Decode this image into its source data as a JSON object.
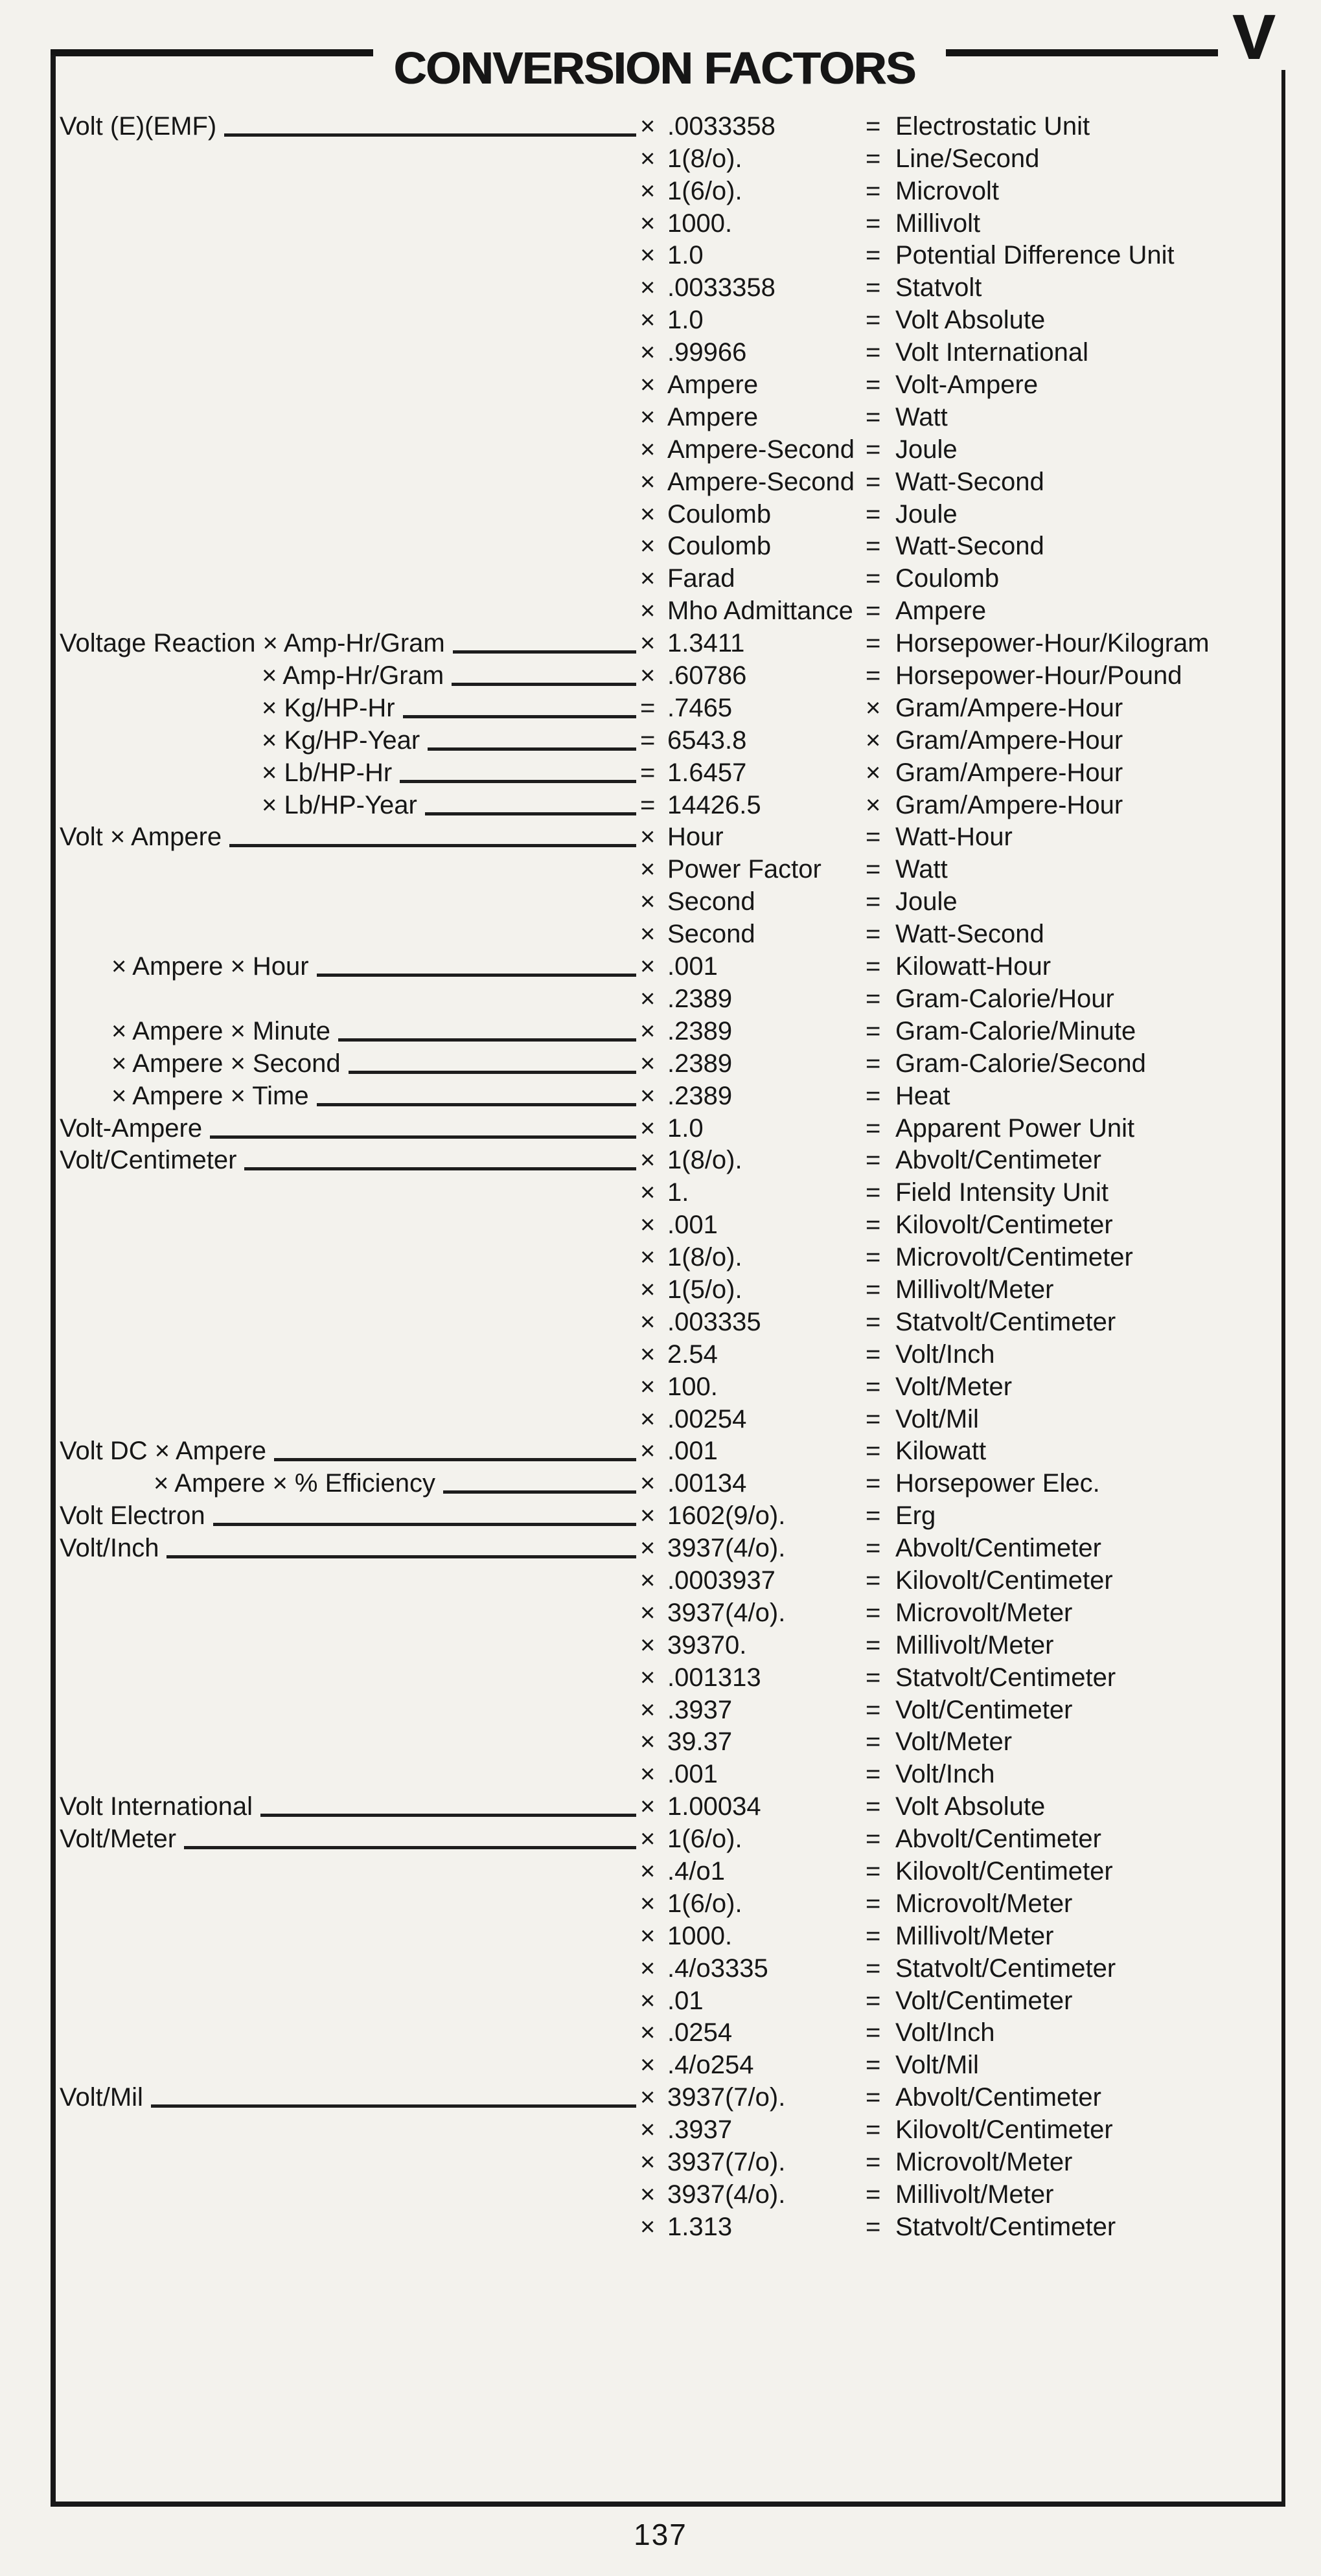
{
  "page": {
    "title": "CONVERSION FACTORS",
    "section_letter": "V",
    "page_number": "137"
  },
  "table": {
    "rows": [
      {
        "label": "Volt (E)(EMF)",
        "indent": 0,
        "leader": true,
        "op": "×",
        "factor": ".0033358",
        "eq": "=",
        "result": "Electrostatic Unit"
      },
      {
        "label": "",
        "indent": 0,
        "leader": false,
        "op": "×",
        "factor": "1(8/o).",
        "eq": "=",
        "result": "Line/Second"
      },
      {
        "label": "",
        "indent": 0,
        "leader": false,
        "op": "×",
        "factor": "1(6/o).",
        "eq": "=",
        "result": "Microvolt"
      },
      {
        "label": "",
        "indent": 0,
        "leader": false,
        "op": "×",
        "factor": "1000.",
        "eq": "=",
        "result": "Millivolt"
      },
      {
        "label": "",
        "indent": 0,
        "leader": false,
        "op": "×",
        "factor": "1.0",
        "eq": "=",
        "result": "Potential Difference Unit"
      },
      {
        "label": "",
        "indent": 0,
        "leader": false,
        "op": "×",
        "factor": ".0033358",
        "eq": "=",
        "result": "Statvolt"
      },
      {
        "label": "",
        "indent": 0,
        "leader": false,
        "op": "×",
        "factor": "1.0",
        "eq": "=",
        "result": "Volt Absolute"
      },
      {
        "label": "",
        "indent": 0,
        "leader": false,
        "op": "×",
        "factor": ".99966",
        "eq": "=",
        "result": "Volt International"
      },
      {
        "label": "",
        "indent": 0,
        "leader": false,
        "op": "×",
        "factor": "Ampere",
        "eq": "=",
        "result": "Volt-Ampere"
      },
      {
        "label": "",
        "indent": 0,
        "leader": false,
        "op": "×",
        "factor": "Ampere",
        "eq": "=",
        "result": "Watt"
      },
      {
        "label": "",
        "indent": 0,
        "leader": false,
        "op": "×",
        "factor": "Ampere-Second",
        "eq": "=",
        "result": "Joule"
      },
      {
        "label": "",
        "indent": 0,
        "leader": false,
        "op": "×",
        "factor": "Ampere-Second",
        "eq": "=",
        "result": "Watt-Second"
      },
      {
        "label": "",
        "indent": 0,
        "leader": false,
        "op": "×",
        "factor": "Coulomb",
        "eq": "=",
        "result": "Joule"
      },
      {
        "label": "",
        "indent": 0,
        "leader": false,
        "op": "×",
        "factor": "Coulomb",
        "eq": "=",
        "result": "Watt-Second"
      },
      {
        "label": "",
        "indent": 0,
        "leader": false,
        "op": "×",
        "factor": "Farad",
        "eq": "=",
        "result": "Coulomb"
      },
      {
        "label": "",
        "indent": 0,
        "leader": false,
        "op": "×",
        "factor": "Mho Admittance",
        "eq": "=",
        "result": "Ampere"
      },
      {
        "label": "Voltage Reaction × Amp-Hr/Gram",
        "indent": 0,
        "leader": true,
        "op": "×",
        "factor": "1.3411",
        "eq": "=",
        "result": "Horsepower-Hour/Kilogram"
      },
      {
        "label": "× Amp-Hr/Gram",
        "indent": 3,
        "leader": true,
        "op": "×",
        "factor": ".60786",
        "eq": "=",
        "result": "Horsepower-Hour/Pound"
      },
      {
        "label": "× Kg/HP-Hr",
        "indent": 3,
        "leader": true,
        "op": "=",
        "factor": ".7465",
        "eq": "×",
        "result": "Gram/Ampere-Hour"
      },
      {
        "label": "× Kg/HP-Year",
        "indent": 3,
        "leader": true,
        "op": "=",
        "factor": "6543.8",
        "eq": "×",
        "result": "Gram/Ampere-Hour"
      },
      {
        "label": "× Lb/HP-Hr",
        "indent": 3,
        "leader": true,
        "op": "=",
        "factor": "1.6457",
        "eq": "×",
        "result": "Gram/Ampere-Hour"
      },
      {
        "label": "× Lb/HP-Year",
        "indent": 3,
        "leader": true,
        "op": "=",
        "factor": "14426.5",
        "eq": "×",
        "result": "Gram/Ampere-Hour"
      },
      {
        "label": "Volt × Ampere",
        "indent": 0,
        "leader": true,
        "op": "×",
        "factor": "Hour",
        "eq": "=",
        "result": "Watt-Hour"
      },
      {
        "label": "",
        "indent": 0,
        "leader": false,
        "op": "×",
        "factor": "Power Factor",
        "eq": "=",
        "result": "Watt"
      },
      {
        "label": "",
        "indent": 0,
        "leader": false,
        "op": "×",
        "factor": "Second",
        "eq": "=",
        "result": "Joule"
      },
      {
        "label": "",
        "indent": 0,
        "leader": false,
        "op": "×",
        "factor": "Second",
        "eq": "=",
        "result": "Watt-Second"
      },
      {
        "label": "× Ampere × Hour",
        "indent": 1,
        "leader": true,
        "op": "×",
        "factor": ".001",
        "eq": "=",
        "result": "Kilowatt-Hour"
      },
      {
        "label": "",
        "indent": 0,
        "leader": false,
        "op": "×",
        "factor": ".2389",
        "eq": "=",
        "result": "Gram-Calorie/Hour"
      },
      {
        "label": "× Ampere × Minute",
        "indent": 1,
        "leader": true,
        "op": "×",
        "factor": ".2389",
        "eq": "=",
        "result": "Gram-Calorie/Minute"
      },
      {
        "label": "× Ampere × Second",
        "indent": 1,
        "leader": true,
        "op": "×",
        "factor": ".2389",
        "eq": "=",
        "result": "Gram-Calorie/Second"
      },
      {
        "label": "× Ampere × Time",
        "indent": 1,
        "leader": true,
        "op": "×",
        "factor": ".2389",
        "eq": "=",
        "result": "Heat"
      },
      {
        "label": "Volt-Ampere",
        "indent": 0,
        "leader": true,
        "op": "×",
        "factor": "1.0",
        "eq": "=",
        "result": "Apparent Power Unit"
      },
      {
        "label": "Volt/Centimeter",
        "indent": 0,
        "leader": true,
        "op": "×",
        "factor": "1(8/o).",
        "eq": "=",
        "result": "Abvolt/Centimeter"
      },
      {
        "label": "",
        "indent": 0,
        "leader": false,
        "op": "×",
        "factor": "1.",
        "eq": "=",
        "result": "Field Intensity Unit"
      },
      {
        "label": "",
        "indent": 0,
        "leader": false,
        "op": "×",
        "factor": ".001",
        "eq": "=",
        "result": "Kilovolt/Centimeter"
      },
      {
        "label": "",
        "indent": 0,
        "leader": false,
        "op": "×",
        "factor": "1(8/o).",
        "eq": "=",
        "result": "Microvolt/Centimeter"
      },
      {
        "label": "",
        "indent": 0,
        "leader": false,
        "op": "×",
        "factor": "1(5/o).",
        "eq": "=",
        "result": "Millivolt/Meter"
      },
      {
        "label": "",
        "indent": 0,
        "leader": false,
        "op": "×",
        "factor": ".003335",
        "eq": "=",
        "result": "Statvolt/Centimeter"
      },
      {
        "label": "",
        "indent": 0,
        "leader": false,
        "op": "×",
        "factor": "2.54",
        "eq": "=",
        "result": "Volt/Inch"
      },
      {
        "label": "",
        "indent": 0,
        "leader": false,
        "op": "×",
        "factor": "100.",
        "eq": "=",
        "result": "Volt/Meter"
      },
      {
        "label": "",
        "indent": 0,
        "leader": false,
        "op": "×",
        "factor": ".00254",
        "eq": "=",
        "result": "Volt/Mil"
      },
      {
        "label": "Volt DC × Ampere",
        "indent": 0,
        "leader": true,
        "op": "×",
        "factor": ".001",
        "eq": "=",
        "result": "Kilowatt"
      },
      {
        "label": "× Ampere × % Efficiency",
        "indent": 2,
        "leader": true,
        "op": "×",
        "factor": ".00134",
        "eq": "=",
        "result": "Horsepower Elec."
      },
      {
        "label": "Volt Electron",
        "indent": 0,
        "leader": true,
        "op": "×",
        "factor": "1602(9/o).",
        "eq": "=",
        "result": "Erg"
      },
      {
        "label": "Volt/Inch",
        "indent": 0,
        "leader": true,
        "op": "×",
        "factor": "3937(4/o).",
        "eq": "=",
        "result": "Abvolt/Centimeter"
      },
      {
        "label": "",
        "indent": 0,
        "leader": false,
        "op": "×",
        "factor": ".0003937",
        "eq": "=",
        "result": "Kilovolt/Centimeter"
      },
      {
        "label": "",
        "indent": 0,
        "leader": false,
        "op": "×",
        "factor": "3937(4/o).",
        "eq": "=",
        "result": "Microvolt/Meter"
      },
      {
        "label": "",
        "indent": 0,
        "leader": false,
        "op": "×",
        "factor": "39370.",
        "eq": "=",
        "result": "Millivolt/Meter"
      },
      {
        "label": "",
        "indent": 0,
        "leader": false,
        "op": "×",
        "factor": ".001313",
        "eq": "=",
        "result": "Statvolt/Centimeter"
      },
      {
        "label": "",
        "indent": 0,
        "leader": false,
        "op": "×",
        "factor": ".3937",
        "eq": "=",
        "result": "Volt/Centimeter"
      },
      {
        "label": "",
        "indent": 0,
        "leader": false,
        "op": "×",
        "factor": "39.37",
        "eq": "=",
        "result": "Volt/Meter"
      },
      {
        "label": "",
        "indent": 0,
        "leader": false,
        "op": "×",
        "factor": ".001",
        "eq": "=",
        "result": "Volt/Inch"
      },
      {
        "label": "Volt International",
        "indent": 0,
        "leader": true,
        "op": "×",
        "factor": "1.00034",
        "eq": "=",
        "result": "Volt Absolute"
      },
      {
        "label": "Volt/Meter",
        "indent": 0,
        "leader": true,
        "op": "×",
        "factor": "1(6/o).",
        "eq": "=",
        "result": "Abvolt/Centimeter"
      },
      {
        "label": "",
        "indent": 0,
        "leader": false,
        "op": "×",
        "factor": ".4/o1",
        "eq": "=",
        "result": "Kilovolt/Centimeter"
      },
      {
        "label": "",
        "indent": 0,
        "leader": false,
        "op": "×",
        "factor": "1(6/o).",
        "eq": "=",
        "result": "Microvolt/Meter"
      },
      {
        "label": "",
        "indent": 0,
        "leader": false,
        "op": "×",
        "factor": "1000.",
        "eq": "=",
        "result": "Millivolt/Meter"
      },
      {
        "label": "",
        "indent": 0,
        "leader": false,
        "op": "×",
        "factor": ".4/o3335",
        "eq": "=",
        "result": "Statvolt/Centimeter"
      },
      {
        "label": "",
        "indent": 0,
        "leader": false,
        "op": "×",
        "factor": ".01",
        "eq": "=",
        "result": "Volt/Centimeter"
      },
      {
        "label": "",
        "indent": 0,
        "leader": false,
        "op": "×",
        "factor": ".0254",
        "eq": "=",
        "result": "Volt/Inch"
      },
      {
        "label": "",
        "indent": 0,
        "leader": false,
        "op": "×",
        "factor": ".4/o254",
        "eq": "=",
        "result": "Volt/Mil"
      },
      {
        "label": "Volt/Mil",
        "indent": 0,
        "leader": true,
        "op": "×",
        "factor": "3937(7/o).",
        "eq": "=",
        "result": "Abvolt/Centimeter"
      },
      {
        "label": "",
        "indent": 0,
        "leader": false,
        "op": "×",
        "factor": ".3937",
        "eq": "=",
        "result": "Kilovolt/Centimeter"
      },
      {
        "label": "",
        "indent": 0,
        "leader": false,
        "op": "×",
        "factor": "3937(7/o).",
        "eq": "=",
        "result": "Microvolt/Meter"
      },
      {
        "label": "",
        "indent": 0,
        "leader": false,
        "op": "×",
        "factor": "3937(4/o).",
        "eq": "=",
        "result": "Millivolt/Meter"
      },
      {
        "label": "",
        "indent": 0,
        "leader": false,
        "op": "×",
        "factor": "1.313",
        "eq": "=",
        "result": "Statvolt/Centimeter"
      }
    ]
  }
}
